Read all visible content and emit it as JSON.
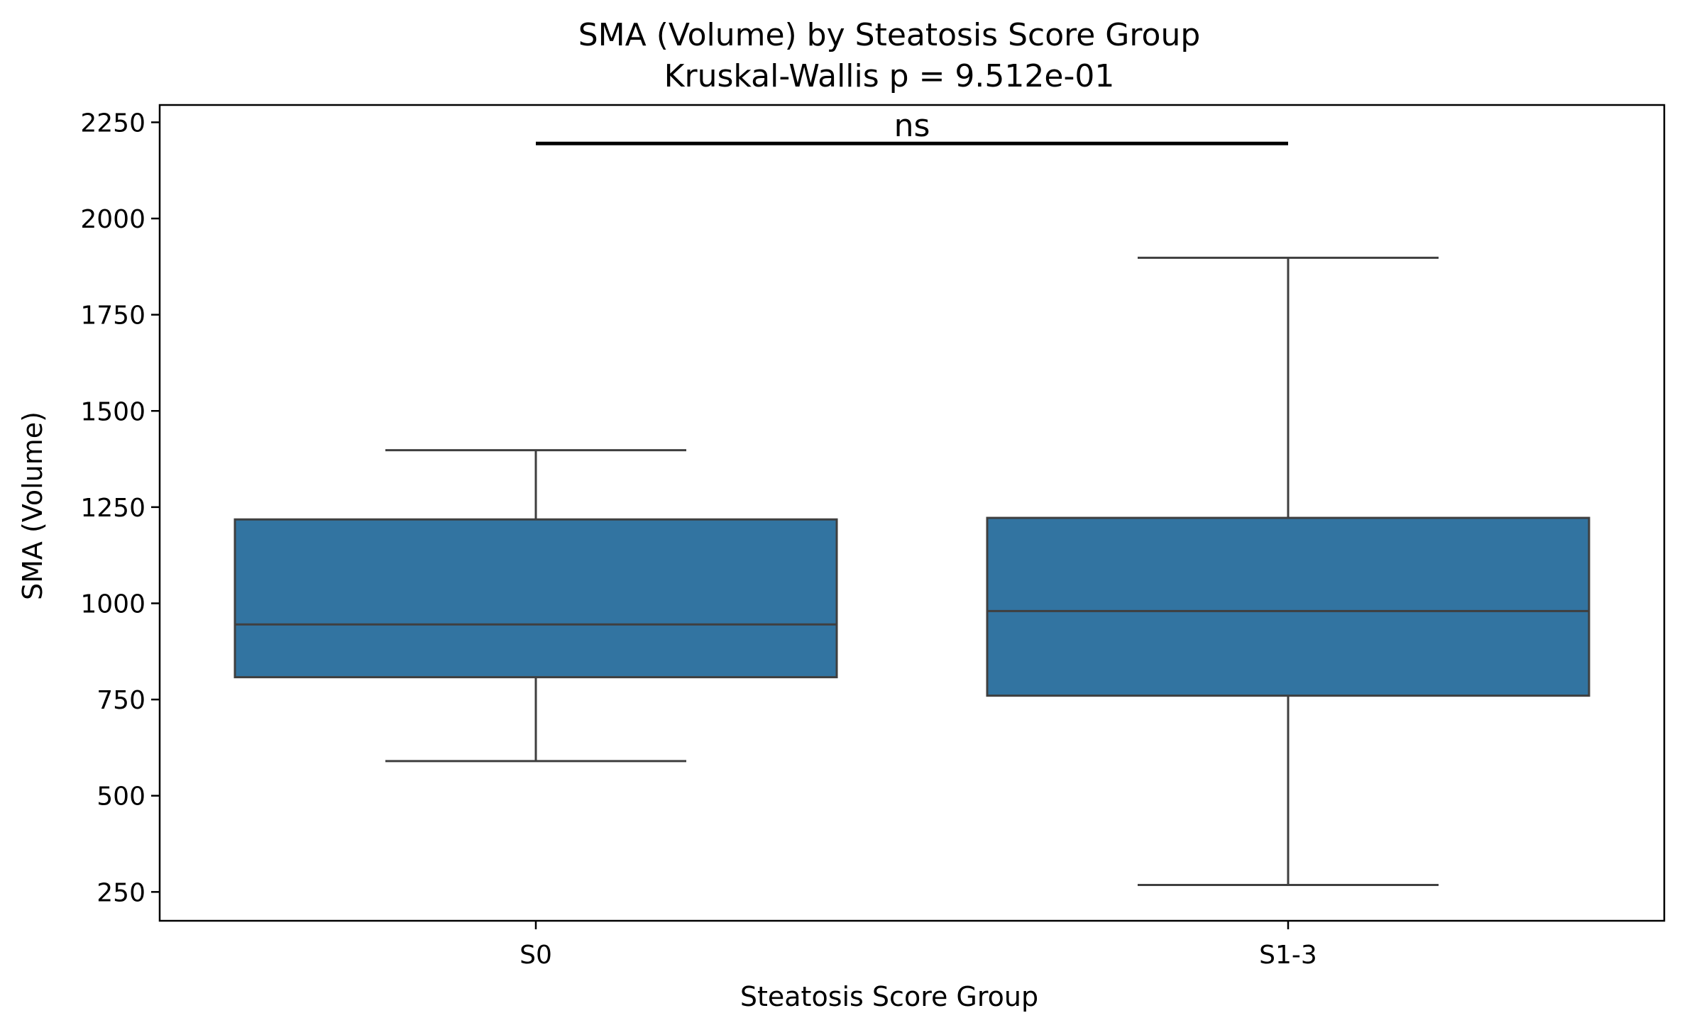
{
  "chart_data": {
    "type": "box",
    "title": "SMA (Volume) by Steatosis Score Group",
    "subtitle": "Kruskal-Wallis p = 9.512e-01",
    "xlabel": "Steatosis Score Group",
    "ylabel": "SMA (Volume)",
    "ylim": [
      175,
      2295
    ],
    "yticks": [
      250,
      500,
      750,
      1000,
      1250,
      1500,
      1750,
      2000,
      2250
    ],
    "categories": [
      "S0",
      "S1-3"
    ],
    "boxes": [
      {
        "category": "S0",
        "whisker_low": 590,
        "q1": 808,
        "median": 945,
        "q3": 1218,
        "whisker_high": 1398
      },
      {
        "category": "S1-3",
        "whisker_low": 268,
        "q1": 760,
        "median": 980,
        "q3": 1222,
        "whisker_high": 1898
      }
    ],
    "annotation": {
      "label": "ns",
      "y": 2195,
      "from": "S0",
      "to": "S1-3"
    },
    "colors": {
      "box_fill": "#3274a1",
      "box_edge": "#3f3f3f",
      "axis": "#000000"
    },
    "grid": false,
    "legend": "none"
  }
}
